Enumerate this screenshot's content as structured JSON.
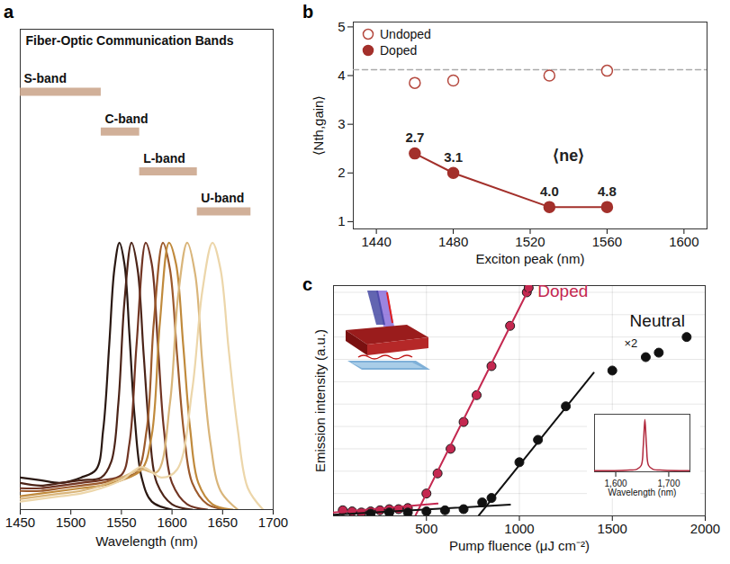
{
  "chart_data": [
    {
      "panel": "a",
      "type": "line",
      "title": "Fiber-Optic Communication Bands",
      "x_label": "Wavelength (nm)",
      "xlim": [
        1450,
        1700
      ],
      "xticks": [
        1450,
        1500,
        1550,
        1600,
        1650,
        1700
      ],
      "ylim": [
        0,
        1.8
      ],
      "tick_labels": "x",
      "bands": [
        {
          "name": "S-band",
          "range": [
            1450,
            1530
          ],
          "color": "#c9a287"
        },
        {
          "name": "C-band",
          "range": [
            1530,
            1568
          ],
          "color": "#c9a287"
        },
        {
          "name": "L-band",
          "range": [
            1568,
            1625
          ],
          "color": "#c9a287"
        },
        {
          "name": "U-band",
          "range": [
            1625,
            1678
          ],
          "color": "#c9a287"
        }
      ],
      "series": [
        {
          "color": "#2a1812",
          "x": [
            1450,
            1470,
            1490,
            1510,
            1525,
            1532,
            1538,
            1543,
            1548,
            1553,
            1558,
            1563,
            1570,
            1580,
            1600
          ],
          "values": [
            0.12,
            0.11,
            0.1,
            0.12,
            0.15,
            0.3,
            0.62,
            0.9,
            1.0,
            0.92,
            0.65,
            0.35,
            0.12,
            0.03,
            0.0
          ]
        },
        {
          "color": "#4c2418",
          "x": [
            1450,
            1470,
            1490,
            1510,
            1530,
            1540,
            1547,
            1553,
            1560,
            1566,
            1572,
            1578,
            1585,
            1600,
            1620
          ],
          "values": [
            0.1,
            0.09,
            0.1,
            0.11,
            0.12,
            0.18,
            0.4,
            0.78,
            1.0,
            0.9,
            0.58,
            0.28,
            0.1,
            0.02,
            0.0
          ]
        },
        {
          "color": "#713523",
          "x": [
            1450,
            1470,
            1490,
            1510,
            1530,
            1550,
            1558,
            1565,
            1574,
            1580,
            1586,
            1592,
            1600,
            1615,
            1635
          ],
          "values": [
            0.08,
            0.08,
            0.09,
            0.1,
            0.11,
            0.13,
            0.25,
            0.62,
            1.0,
            0.92,
            0.62,
            0.3,
            0.1,
            0.02,
            0.0
          ]
        },
        {
          "color": "#9c5a2c",
          "x": [
            1450,
            1470,
            1490,
            1510,
            1530,
            1550,
            1565,
            1575,
            1582,
            1591,
            1598,
            1605,
            1612,
            1620,
            1635,
            1655
          ],
          "values": [
            0.07,
            0.07,
            0.08,
            0.09,
            0.1,
            0.12,
            0.14,
            0.3,
            0.7,
            1.0,
            0.9,
            0.58,
            0.28,
            0.1,
            0.02,
            0.0
          ]
        },
        {
          "color": "#c08a3c",
          "x": [
            1450,
            1470,
            1490,
            1510,
            1530,
            1550,
            1570,
            1580,
            1588,
            1597,
            1604,
            1611,
            1618,
            1626,
            1640,
            1660
          ],
          "values": [
            0.05,
            0.06,
            0.07,
            0.08,
            0.09,
            0.11,
            0.15,
            0.28,
            0.7,
            1.0,
            0.92,
            0.62,
            0.3,
            0.1,
            0.02,
            0.0
          ]
        },
        {
          "color": "#d9b57a",
          "x": [
            1450,
            1470,
            1490,
            1510,
            1530,
            1550,
            1570,
            1585,
            1598,
            1606,
            1615,
            1623,
            1630,
            1638,
            1648,
            1665
          ],
          "values": [
            0.04,
            0.05,
            0.06,
            0.07,
            0.09,
            0.12,
            0.15,
            0.14,
            0.4,
            0.8,
            1.0,
            0.88,
            0.55,
            0.25,
            0.07,
            0.0
          ]
        },
        {
          "color": "#ecd6aa",
          "x": [
            1450,
            1470,
            1490,
            1510,
            1530,
            1550,
            1570,
            1590,
            1605,
            1620,
            1630,
            1640,
            1648,
            1656,
            1665,
            1675,
            1690
          ],
          "values": [
            0.03,
            0.04,
            0.05,
            0.06,
            0.08,
            0.11,
            0.16,
            0.12,
            0.15,
            0.45,
            0.82,
            1.0,
            0.9,
            0.6,
            0.3,
            0.08,
            0.0
          ]
        }
      ]
    },
    {
      "panel": "b",
      "type": "scatter",
      "x_label": "Exciton peak (nm)",
      "y_label": "⟨Nth,gain⟩",
      "xlim": [
        1428,
        1612
      ],
      "xticks": [
        1440,
        1480,
        1520,
        1560,
        1600
      ],
      "ylim": [
        0.85,
        5.1
      ],
      "yticks": [
        1,
        2,
        3,
        4,
        5
      ],
      "legend": "top-left",
      "annotations": [
        {
          "text": "⟨ne⟩",
          "x": 1540,
          "y": 2.35
        }
      ],
      "series": [
        {
          "type": "line",
          "color": "#aaaaaa",
          "line_style": "dashed",
          "x": [
            1428,
            1612
          ],
          "values": [
            4.12,
            4.12
          ]
        },
        {
          "name": "Undoped",
          "type": "scatter",
          "marker": "open_circle",
          "color": "#b5493f",
          "x": [
            1460,
            1480,
            1530,
            1560
          ],
          "values": [
            3.85,
            3.9,
            4.0,
            4.1
          ]
        },
        {
          "name": "Doped",
          "type": "line",
          "marker": "circle",
          "color": "#a3302b",
          "x": [
            1460,
            1480,
            1530,
            1560
          ],
          "values": [
            2.4,
            2.0,
            1.3,
            1.3
          ],
          "point_labels": [
            "2.7",
            "3.1",
            "4.0",
            "4.8"
          ]
        }
      ]
    },
    {
      "panel": "c",
      "type": "scatter",
      "x_label": "Pump fluence (μJ cm⁻²)",
      "y_label": "Emission intensity (a.u.)",
      "xlim": [
        0,
        2000
      ],
      "xticks": [
        500,
        1000,
        1500,
        2000
      ],
      "ylim": [
        0,
        10.3
      ],
      "yticks": [
        0,
        1,
        2,
        3,
        4,
        5,
        6,
        7,
        8,
        9,
        10
      ],
      "grid": true,
      "tick_labels": "x",
      "annotations": [
        {
          "text": "×2",
          "x": 1600,
          "y": 7.7
        }
      ],
      "series": [
        {
          "name": "Doped",
          "type": "scatter",
          "marker": "circle",
          "color": "#c42850",
          "x": [
            50,
            100,
            150,
            200,
            250,
            300,
            350,
            400,
            500,
            560,
            630,
            700,
            770,
            850,
            950,
            1040,
            1050
          ],
          "values": [
            0.25,
            0.2,
            0.15,
            0.2,
            0.25,
            0.3,
            0.3,
            0.35,
            1.0,
            1.9,
            3.0,
            4.2,
            5.4,
            6.7,
            8.5,
            10.0,
            10.2
          ]
        },
        {
          "type": "line",
          "color": "#c42850",
          "x": [
            0,
            560
          ],
          "values": [
            0.15,
            0.55
          ]
        },
        {
          "type": "line",
          "color": "#c42850",
          "x": [
            440,
            1060
          ],
          "values": [
            0,
            10.3
          ]
        },
        {
          "name": "Neutral",
          "type": "scatter",
          "marker": "circle",
          "color": "#111111",
          "x": [
            200,
            300,
            400,
            500,
            600,
            700,
            800,
            850,
            1000,
            1100,
            1250,
            1500,
            1680,
            1750,
            1900
          ],
          "values": [
            0.1,
            0.15,
            0.15,
            0.2,
            0.25,
            0.3,
            0.6,
            0.8,
            2.4,
            3.4,
            4.9,
            6.5,
            7.1,
            7.3,
            8.0
          ]
        },
        {
          "type": "line",
          "color": "#111111",
          "x": [
            0,
            950
          ],
          "values": [
            0.05,
            0.5
          ]
        },
        {
          "type": "line",
          "color": "#111111",
          "x": [
            780,
            1400
          ],
          "values": [
            0,
            6.4
          ]
        }
      ]
    },
    {
      "type": "line",
      "x_label": "Wavelength (nm)",
      "xlim": [
        1560,
        1740
      ],
      "xticks": [
        {
          "value": 1600,
          "label": "1,600"
        },
        {
          "value": 1700,
          "label": "1,700"
        }
      ],
      "ylim": [
        0,
        1.1
      ],
      "tick_labels": "x",
      "series": [
        {
          "color": "#b0283c",
          "x": [
            1560,
            1620,
            1640,
            1648,
            1652,
            1655,
            1658,
            1662,
            1670,
            1690,
            1740
          ],
          "values": [
            0.02,
            0.03,
            0.05,
            0.12,
            0.5,
            1.0,
            0.5,
            0.12,
            0.05,
            0.03,
            0.02
          ]
        }
      ]
    }
  ]
}
